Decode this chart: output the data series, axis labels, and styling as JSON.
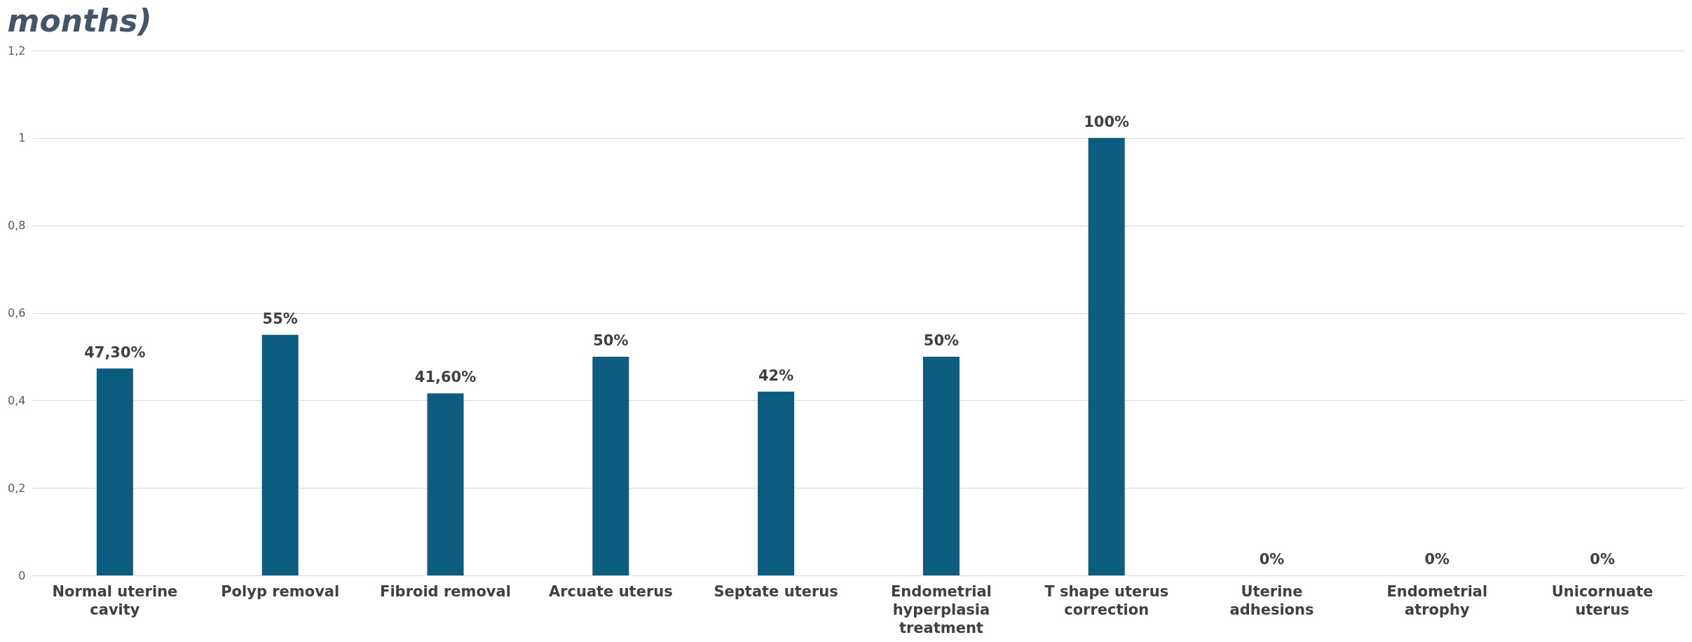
{
  "chart_data": {
    "type": "bar",
    "title": "months)",
    "categories": [
      "Normal uterine cavity",
      "Polyp removal",
      "Fibroid removal",
      "Arcuate uterus",
      "Septate uterus",
      "Endometrial hyperplasia treatment",
      "T shape uterus correction",
      "Uterine adhesions",
      "Endometrial atrophy",
      "Unicornuate uterus"
    ],
    "values": [
      0.473,
      0.55,
      0.416,
      0.5,
      0.42,
      0.5,
      1,
      0,
      0,
      0
    ],
    "value_labels": [
      "47,30%",
      "55%",
      "41,60%",
      "50%",
      "42%",
      "50%",
      "100%",
      "0%",
      "0%",
      "0%"
    ],
    "color": "#0b5c7e",
    "ylim": [
      0,
      1.2
    ],
    "yticks": [
      0,
      {
        "value": 0.2,
        "label": "0,2"
      },
      {
        "value": 0.4,
        "label": "0,4"
      },
      {
        "value": 0.6,
        "label": "0,6"
      },
      {
        "value": 0.8,
        "label": "0,8"
      },
      1,
      {
        "value": 1.2,
        "label": "1,2"
      }
    ],
    "grid": "y"
  }
}
